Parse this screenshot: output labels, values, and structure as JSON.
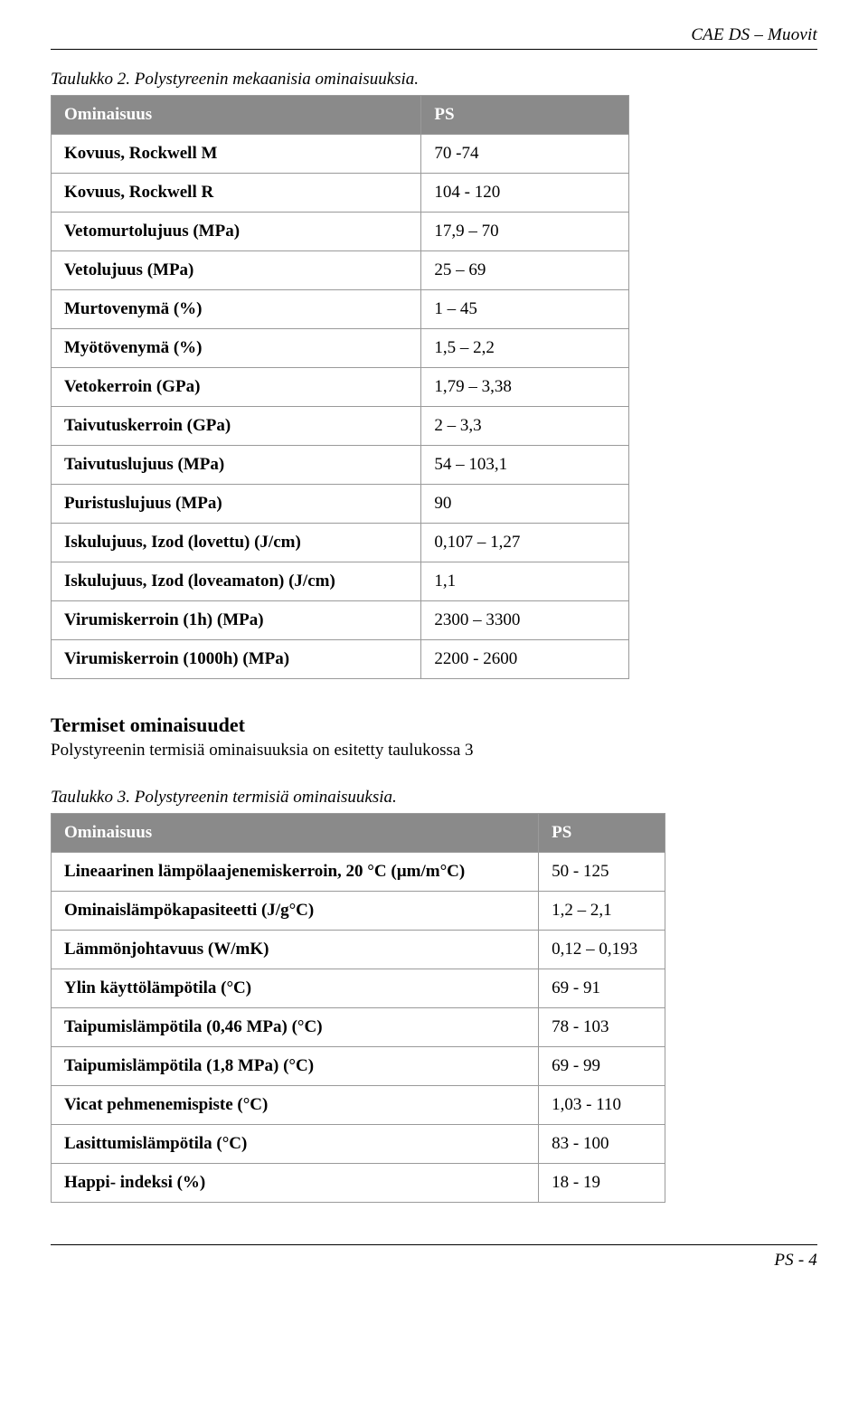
{
  "header": {
    "right": "CAE DS – Muovit"
  },
  "table2": {
    "caption": "Taulukko 2. Polystyreenin mekaanisia ominaisuuksia.",
    "head_label": "Ominaisuus",
    "head_value": "PS",
    "rows": [
      {
        "label": "Kovuus, Rockwell M",
        "value": "70 -74"
      },
      {
        "label": "Kovuus, Rockwell R",
        "value": "104 - 120"
      },
      {
        "label": "Vetomurtolujuus (MPa)",
        "value": "17,9 – 70"
      },
      {
        "label": "Vetolujuus (MPa)",
        "value": "25 – 69"
      },
      {
        "label": "Murtovenymä (%)",
        "value": "1 – 45"
      },
      {
        "label": "Myötövenymä (%)",
        "value": "1,5 – 2,2"
      },
      {
        "label": "Vetokerroin (GPa)",
        "value": "1,79 – 3,38"
      },
      {
        "label": "Taivutuskerroin (GPa)",
        "value": "2 – 3,3"
      },
      {
        "label": "Taivutuslujuus (MPa)",
        "value": "54 – 103,1"
      },
      {
        "label": "Puristuslujuus (MPa)",
        "value": "90"
      },
      {
        "label": "Iskulujuus, Izod (lovettu) (J/cm)",
        "value": "0,107 – 1,27"
      },
      {
        "label": "Iskulujuus, Izod (loveamaton) (J/cm)",
        "value": "1,1"
      },
      {
        "label": "Virumiskerroin (1h) (MPa)",
        "value": "2300 – 3300"
      },
      {
        "label": "Virumiskerroin (1000h) (MPa)",
        "value": "2200 - 2600"
      }
    ]
  },
  "section": {
    "title": "Termiset ominaisuudet",
    "text": "Polystyreenin termisiä ominaisuuksia on esitetty taulukossa 3"
  },
  "table3": {
    "caption": "Taulukko 3. Polystyreenin termisiä ominaisuuksia.",
    "head_label": "Ominaisuus",
    "head_value": "PS",
    "rows": [
      {
        "label": "Lineaarinen lämpölaajenemiskerroin, 20 °C (µm/m°C)",
        "value": "50 - 125"
      },
      {
        "label": "Ominaislämpökapasiteetti (J/g°C)",
        "value": "1,2 – 2,1"
      },
      {
        "label": "Lämmönjohtavuus (W/mK)",
        "value": "0,12 – 0,193"
      },
      {
        "label": "Ylin käyttölämpötila (°C)",
        "value": "69 - 91"
      },
      {
        "label": "Taipumislämpötila (0,46 MPa) (°C)",
        "value": "78 - 103"
      },
      {
        "label": "Taipumislämpötila (1,8 MPa) (°C)",
        "value": "69 - 99"
      },
      {
        "label": "Vicat pehmenemispiste (°C)",
        "value": "1,03 - 110"
      },
      {
        "label": "Lasittumislämpötila (°C)",
        "value": "83 - 100"
      },
      {
        "label": "Happi- indeksi (%)",
        "value": "18 - 19"
      }
    ]
  },
  "footer": {
    "right": "PS - 4"
  }
}
